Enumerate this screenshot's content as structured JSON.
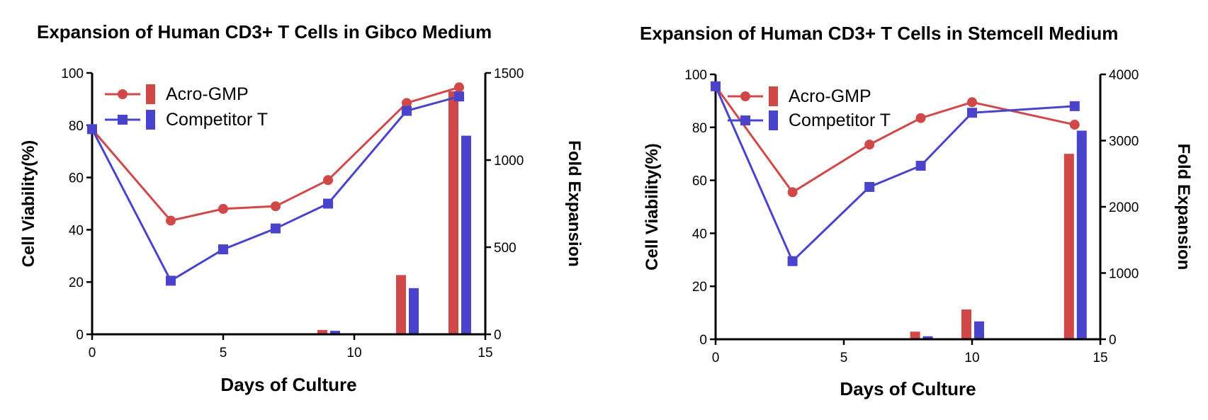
{
  "chart_data": [
    {
      "type": "line+bar",
      "title": "Expansion of Human CD3+ T Cells in Gibco Medium",
      "xlabel": "Days of Culture",
      "ylabel": "Cell Viability(%)",
      "y2label": "Fold Expansion",
      "xlim": [
        0,
        15
      ],
      "ylim": [
        0,
        100
      ],
      "y2lim": [
        0,
        1500
      ],
      "xticks": [
        "0",
        "5",
        "10",
        "15"
      ],
      "yticks": [
        "0",
        "20",
        "40",
        "60",
        "80",
        "100"
      ],
      "y2ticks": [
        "0",
        "500",
        "1000",
        "1500"
      ],
      "legend_position": "top-left",
      "grid": false,
      "line_series": [
        {
          "name": "Acro-GMP",
          "color": "#d04848",
          "marker": "circle",
          "x": [
            0,
            3,
            5,
            7,
            9,
            12,
            14
          ],
          "y": [
            78.5,
            43.5,
            48,
            49,
            59,
            88.5,
            94.5
          ]
        },
        {
          "name": "Competitor T",
          "color": "#4a44cc",
          "marker": "square",
          "x": [
            0,
            3,
            5,
            7,
            9,
            12,
            14
          ],
          "y": [
            78.5,
            20.5,
            32.5,
            40.5,
            50,
            85.5,
            91
          ]
        }
      ],
      "bar_series": [
        {
          "name": "Acro-GMP",
          "color": "#d04848",
          "x": [
            5,
            7,
            9,
            12,
            14
          ],
          "values": [
            2,
            5,
            25,
            340,
            1395
          ]
        },
        {
          "name": "Competitor T",
          "color": "#4a44cc",
          "x": [
            5,
            7,
            9,
            12,
            14
          ],
          "values": [
            2,
            4,
            20,
            265,
            1140
          ]
        }
      ]
    },
    {
      "type": "line+bar",
      "title": "Expansion of Human CD3+ T Cells in Stemcell Medium",
      "xlabel": "Days of Culture",
      "ylabel": "Cell Viability(%)",
      "y2label": "Fold Expansion",
      "xlim": [
        0,
        15
      ],
      "ylim": [
        0,
        100
      ],
      "y2lim": [
        0,
        4000
      ],
      "xticks": [
        "0",
        "5",
        "10",
        "15"
      ],
      "yticks": [
        "0",
        "20",
        "40",
        "60",
        "80",
        "100"
      ],
      "y2ticks": [
        "0",
        "1000",
        "2000",
        "3000",
        "4000"
      ],
      "legend_position": "top-left",
      "grid": false,
      "line_series": [
        {
          "name": "Acro-GMP",
          "color": "#d04848",
          "marker": "circle",
          "x": [
            0,
            3,
            6,
            8,
            10,
            14
          ],
          "y": [
            95.5,
            55.5,
            73.5,
            83.5,
            89.5,
            81
          ]
        },
        {
          "name": "Competitor T",
          "color": "#4a44cc",
          "marker": "square",
          "x": [
            0,
            3,
            6,
            8,
            10,
            14
          ],
          "y": [
            95.5,
            29.5,
            57.5,
            65.5,
            85.5,
            88
          ]
        }
      ],
      "bar_series": [
        {
          "name": "Acro-GMP",
          "color": "#d04848",
          "x": [
            6,
            8,
            10,
            14
          ],
          "values": [
            10,
            115,
            450,
            2800
          ]
        },
        {
          "name": "Competitor T",
          "color": "#4a44cc",
          "x": [
            6,
            8,
            10,
            14
          ],
          "values": [
            5,
            45,
            270,
            3150
          ]
        }
      ]
    }
  ]
}
